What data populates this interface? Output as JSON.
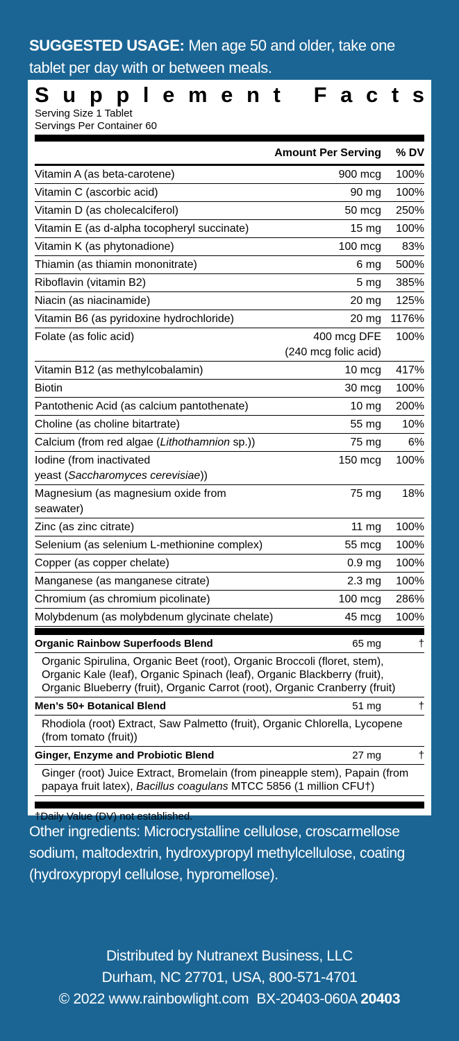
{
  "usage": {
    "label": "SUGGESTED USAGE:",
    "text": "Men age 50 and older, take one tablet per day with or between meals."
  },
  "facts": {
    "title": "Supplement Facts",
    "serving_size": "Serving Size 1 Tablet",
    "servings": "Servings Per Container 60",
    "header": {
      "amount": "Amount Per Serving",
      "dv": "% DV"
    },
    "rows": [
      {
        "name": [
          {
            "text": "Vitamin A (as beta-carotene)"
          }
        ],
        "amount": [
          "900 mcg"
        ],
        "dv": "100%"
      },
      {
        "name": [
          {
            "text": "Vitamin C (ascorbic acid)"
          }
        ],
        "amount": [
          "90 mg"
        ],
        "dv": "100%"
      },
      {
        "name": [
          {
            "text": "Vitamin D (as cholecalciferol)"
          }
        ],
        "amount": [
          "50 mcg"
        ],
        "dv": "250%"
      },
      {
        "name": [
          {
            "text": "Vitamin E (as d-alpha tocopheryl succinate)"
          }
        ],
        "amount": [
          "15 mg"
        ],
        "dv": "100%"
      },
      {
        "name": [
          {
            "text": "Vitamin K (as phytonadione)"
          }
        ],
        "amount": [
          "100 mcg"
        ],
        "dv": "83%"
      },
      {
        "name": [
          {
            "text": "Thiamin (as thiamin mononitrate)"
          }
        ],
        "amount": [
          "6 mg"
        ],
        "dv": "500%"
      },
      {
        "name": [
          {
            "text": "Riboflavin (vitamin B2)"
          }
        ],
        "amount": [
          "5 mg"
        ],
        "dv": "385%"
      },
      {
        "name": [
          {
            "text": "Niacin (as niacinamide)"
          }
        ],
        "amount": [
          "20 mg"
        ],
        "dv": "125%"
      },
      {
        "name": [
          {
            "text": "Vitamin B6 (as pyridoxine hydrochloride)"
          }
        ],
        "amount": [
          "20 mg"
        ],
        "dv": "1176%"
      },
      {
        "name": [
          {
            "text": "Folate (as folic acid)"
          }
        ],
        "amount": [
          "400 mcg DFE",
          "(240 mcg folic acid)"
        ],
        "dv": "100%"
      },
      {
        "name": [
          {
            "text": "Vitamin B12 (as methylcobalamin)"
          }
        ],
        "amount": [
          "10 mcg"
        ],
        "dv": "417%"
      },
      {
        "name": [
          {
            "text": "Biotin"
          }
        ],
        "amount": [
          "30 mcg"
        ],
        "dv": "100%"
      },
      {
        "name": [
          {
            "text": "Pantothenic Acid (as calcium pantothenate)"
          }
        ],
        "amount": [
          "10 mg"
        ],
        "dv": "200%"
      },
      {
        "name": [
          {
            "text": "Choline (as choline bitartrate)"
          }
        ],
        "amount": [
          "55 mg"
        ],
        "dv": "10%"
      },
      {
        "name": [
          {
            "text": "Calcium (from red algae ("
          },
          {
            "text": "Lithothamnion",
            "italic": true
          },
          {
            "text": " sp.))"
          }
        ],
        "amount": [
          "75 mg"
        ],
        "dv": "6%"
      },
      {
        "name": [
          {
            "text": "Iodine (from inactivated"
          },
          {
            "text": "yeast (",
            "break": true
          },
          {
            "text": "Saccharomyces cerevisiae",
            "italic": true
          },
          {
            "text": "))"
          }
        ],
        "amount": [
          "150 mcg"
        ],
        "dv": "100%"
      },
      {
        "name": [
          {
            "text": "Magnesium (as magnesium oxide from seawater)"
          }
        ],
        "amount": [
          "75 mg"
        ],
        "dv": "18%"
      },
      {
        "name": [
          {
            "text": "Zinc (as zinc citrate)"
          }
        ],
        "amount": [
          "11 mg"
        ],
        "dv": "100%"
      },
      {
        "name": [
          {
            "text": "Selenium (as selenium L-methionine complex)"
          }
        ],
        "amount": [
          "55 mcg"
        ],
        "dv": "100%"
      },
      {
        "name": [
          {
            "text": "Copper (as copper chelate)"
          }
        ],
        "amount": [
          "0.9 mg"
        ],
        "dv": "100%"
      },
      {
        "name": [
          {
            "text": "Manganese (as manganese citrate)"
          }
        ],
        "amount": [
          "2.3 mg"
        ],
        "dv": "100%"
      },
      {
        "name": [
          {
            "text": "Chromium (as chromium picolinate)"
          }
        ],
        "amount": [
          "100 mcg"
        ],
        "dv": "286%"
      },
      {
        "name": [
          {
            "text": "Molybdenum (as molybdenum glycinate chelate)"
          }
        ],
        "amount": [
          "45 mcg"
        ],
        "dv": "100%"
      }
    ],
    "blends": [
      {
        "name": "Organic Rainbow Superfoods Blend",
        "amount": "65 mg",
        "dv": "†",
        "ingredients": [
          {
            "text": "Organic Spirulina, Organic Beet (root), Organic Broccoli (floret, stem), Organic Kale (leaf), Organic Spinach (leaf), Organic Blackberry (fruit), Organic Blueberry (fruit), Organic Carrot (root), Organic Cranberry (fruit)"
          }
        ]
      },
      {
        "name": "Men’s 50+ Botanical Blend",
        "amount": "51 mg",
        "dv": "†",
        "ingredients": [
          {
            "text": "Rhodiola (root) Extract, Saw Palmetto (fruit), Organic Chlorella, Lycopene (from tomato (fruit))"
          }
        ]
      },
      {
        "name": "Ginger, Enzyme and Probiotic Blend",
        "amount": "27 mg",
        "dv": "†",
        "ingredients": [
          {
            "text": "Ginger (root) Juice Extract, Bromelain (from pineapple stem), Papain (from papaya fruit latex), "
          },
          {
            "text": "Bacillus coagulans",
            "italic": true
          },
          {
            "text": " MTCC 5856 (1 million CFU†)"
          }
        ]
      }
    ],
    "footnote": "†Daily Value (DV) not established."
  },
  "other_ingredients": "Other ingredients: Microcrystalline cellulose, croscarmellose sodium, maltodextrin, hydroxypropyl methylcellulose, coating (hydroxypropyl cellulose, hypromellose).",
  "distributor": {
    "line1": "Distributed by Nutranext Business, LLC",
    "line2": "Durham, NC 27701, USA, 800-571-4701",
    "line3": "© 2022 www.rainbowlight.com  BX-20403-060A",
    "code": "20403"
  }
}
